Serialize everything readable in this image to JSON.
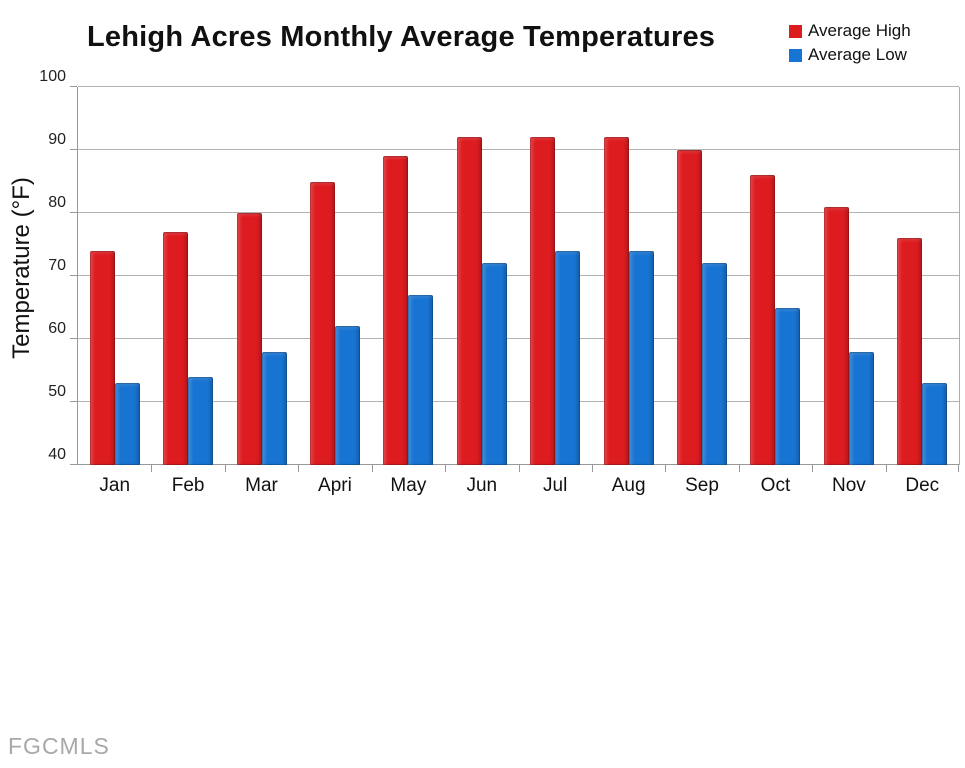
{
  "title": "Lehigh Acres Monthly Average Temperatures",
  "watermark": "FGCMLS",
  "legend": {
    "position": "top-right",
    "items": [
      {
        "label": "Average High",
        "color": "#dd1c20"
      },
      {
        "label": "Average Low",
        "color": "#1874d2"
      }
    ]
  },
  "chart_data": {
    "type": "bar",
    "title": "Lehigh Acres Monthly Average Temperatures",
    "categories": [
      "Jan",
      "Feb",
      "Mar",
      "Apri",
      "May",
      "Jun",
      "Jul",
      "Aug",
      "Sep",
      "Oct",
      "Nov",
      "Dec"
    ],
    "series": [
      {
        "name": "Average High",
        "color": "#dd1c20",
        "values": [
          74,
          77,
          80,
          85,
          89,
          92,
          92,
          92,
          90,
          86,
          81,
          76
        ]
      },
      {
        "name": "Average Low",
        "color": "#1874d2",
        "values": [
          53,
          54,
          58,
          62,
          67,
          72,
          74,
          74,
          72,
          65,
          58,
          53
        ]
      }
    ],
    "xlabel": "",
    "ylabel": "Temperature (°F)",
    "ylim": [
      40,
      100
    ],
    "yticks": [
      40,
      50,
      60,
      70,
      80,
      90,
      100
    ],
    "grid": true,
    "legend_position": "top-right"
  },
  "colors": {
    "grid": "#b3b3b3",
    "axis": "#999999",
    "background": "#ffffff",
    "watermark": "#a8a8a8"
  }
}
